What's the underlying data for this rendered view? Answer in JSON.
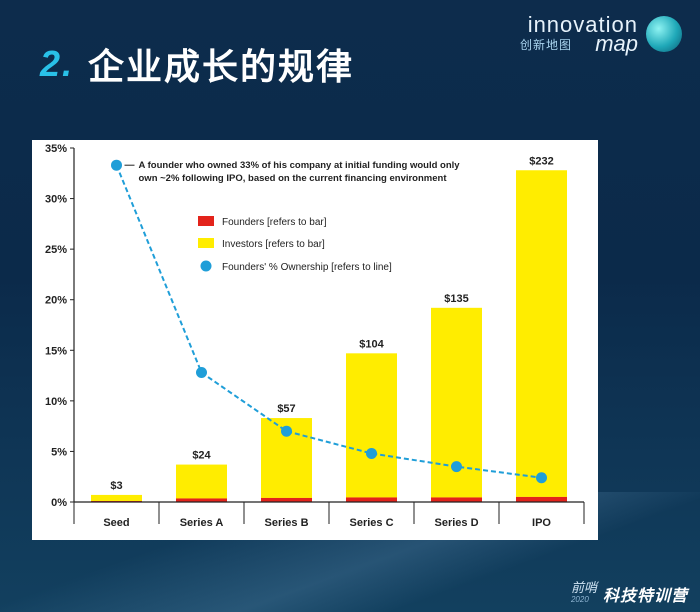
{
  "slide": {
    "number": "2.",
    "title": "企业成长的规律"
  },
  "logo": {
    "line1": "innovation",
    "line2_cn": "创新地图",
    "line2_en": "map"
  },
  "footer": {
    "prefix": "前哨",
    "year": "2020",
    "name": "科技特训营"
  },
  "colors": {
    "founders": "#e3231b",
    "investors": "#ffed00",
    "ownership": "#1f9ed8"
  },
  "chart_data": {
    "type": "bar",
    "categories": [
      "Seed",
      "Series A",
      "Series B",
      "Series C",
      "Series D",
      "IPO"
    ],
    "series": [
      {
        "name": "Founders [refers to bar]",
        "values": [
          0.1,
          0.35,
          0.4,
          0.45,
          0.45,
          0.5
        ]
      },
      {
        "name": "Investors [refers to bar]",
        "values": [
          0.6,
          3.35,
          7.9,
          14.25,
          18.75,
          32.3
        ]
      },
      {
        "name": "Founders' % Ownership [refers to line]",
        "values": [
          33.3,
          12.8,
          7.0,
          4.8,
          3.5,
          2.4
        ]
      }
    ],
    "bar_labels": [
      "$3",
      "$24",
      "$57",
      "$104",
      "$135",
      "$232"
    ],
    "ylim": [
      0,
      35
    ],
    "yticks": [
      0,
      5,
      10,
      15,
      20,
      25,
      30,
      35
    ],
    "ytick_labels": [
      "0%",
      "5%",
      "10%",
      "15%",
      "20%",
      "25%",
      "30%",
      "35%"
    ],
    "annotation_line1": "A founder who owned 33% of his company at initial funding would only",
    "annotation_line2": "own ~2% following IPO, based on the current financing environment",
    "xlabel": "",
    "ylabel": ""
  }
}
